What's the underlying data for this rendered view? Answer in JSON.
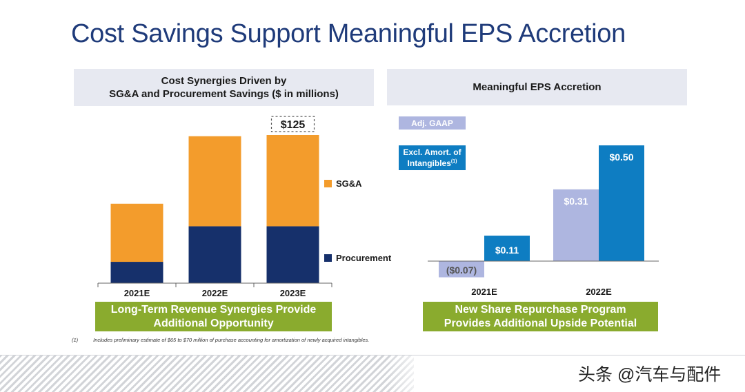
{
  "title": "Cost Savings Support Meaningful EPS Accretion",
  "left_panel": {
    "header_line1": "Cost Synergies Driven by",
    "header_line2": "SG&A and Procurement Savings ($ in millions)",
    "callout": "$125",
    "legend": [
      {
        "label": "SG&A",
        "color": "#f39c2c"
      },
      {
        "label": "Procurement",
        "color": "#16306b"
      }
    ],
    "banner_line1": "Long-Term Revenue Synergies Provide",
    "banner_line2": "Additional Opportunity"
  },
  "right_panel": {
    "header": "Meaningful EPS Accretion",
    "legend": [
      {
        "label": "Adj. GAAP",
        "color": "#aeb6e0"
      },
      {
        "label_line1": "Excl. Amort. of",
        "label_line2": "Intangibles",
        "superscript": "(1)",
        "color": "#0e7dc2"
      }
    ],
    "banner_line1": "New Share Repurchase Program",
    "banner_line2": "Provides Additional Upside Potential"
  },
  "footnote": {
    "number": "(1)",
    "text": "Includes preliminary estimate of $65 to $70 million of purchase accounting for amortization of newly acquired intangibles."
  },
  "watermark": "头条 @汽车与配件",
  "chart_data": [
    {
      "type": "bar",
      "stacked": true,
      "categories": [
        "2021E",
        "2022E",
        "2023E"
      ],
      "series": [
        {
          "name": "Procurement",
          "values": [
            18,
            48,
            48
          ],
          "color": "#16306b"
        },
        {
          "name": "SG&A",
          "values": [
            49,
            76,
            77
          ],
          "color": "#f39c2c"
        }
      ],
      "total_labels": [
        "",
        "",
        "$125"
      ],
      "ylim": [
        0,
        125
      ],
      "legend": "right",
      "grid": false
    },
    {
      "type": "bar",
      "categories": [
        "2021E",
        "2022E"
      ],
      "series": [
        {
          "name": "Adj. GAAP",
          "values": [
            -0.07,
            0.31
          ],
          "labels": [
            "($0.07)",
            "$0.31"
          ],
          "color": "#aeb6e0"
        },
        {
          "name": "Excl. Amort. of Intangibles",
          "values": [
            0.11,
            0.5
          ],
          "labels": [
            "$0.11",
            "$0.50"
          ],
          "color": "#0e7dc2"
        }
      ],
      "ylim": [
        -0.07,
        0.5
      ],
      "legend": "top-left",
      "grid": false
    }
  ]
}
